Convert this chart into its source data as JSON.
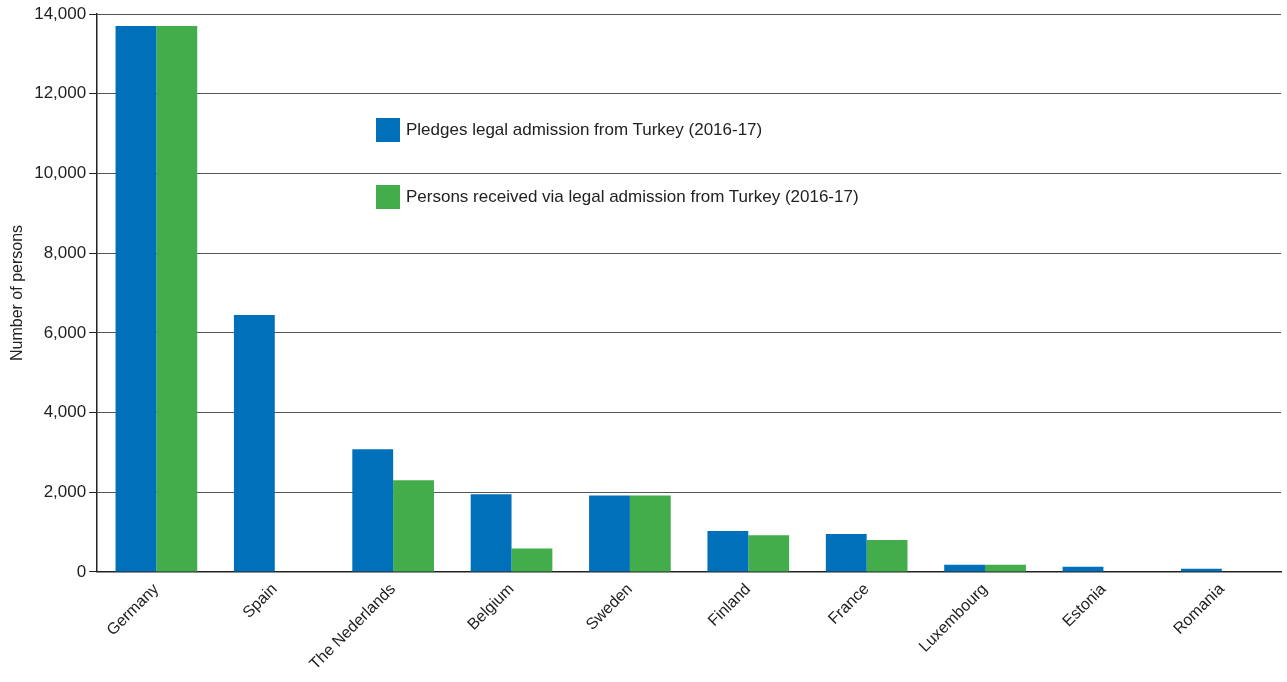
{
  "chart_data": {
    "type": "bar",
    "ylabel": "Number of persons",
    "categories": [
      "Germany",
      "Spain",
      "The Nederlands",
      "Belgium",
      "Sweden",
      "Finland",
      "France",
      "Luxembourg",
      "Estonia",
      "Romania"
    ],
    "series": [
      {
        "name": "Pledges legal admission from Turkey (2016-17)",
        "color": "#0070bb",
        "values": [
          13700,
          6450,
          3080,
          1950,
          1920,
          1030,
          950,
          180,
          130,
          80
        ]
      },
      {
        "name": "Persons received via legal admission from Turkey (2016-17)",
        "color": "#43ad4b",
        "values": [
          13700,
          0,
          2300,
          590,
          1920,
          920,
          800,
          180,
          0,
          0
        ]
      }
    ],
    "ylim": [
      0,
      14000
    ],
    "yticks": [
      0,
      {
        "value": 2000,
        "label": "2,000"
      },
      {
        "value": 4000,
        "label": "4,000"
      },
      {
        "value": 6000,
        "label": "6,000"
      },
      {
        "value": 8000,
        "label": "8,000"
      },
      {
        "value": 10000,
        "label": "10,000"
      },
      {
        "value": 12000,
        "label": "12,000"
      },
      {
        "value": 14000,
        "label": "14,000"
      }
    ],
    "grid": "y",
    "legend": "top"
  }
}
